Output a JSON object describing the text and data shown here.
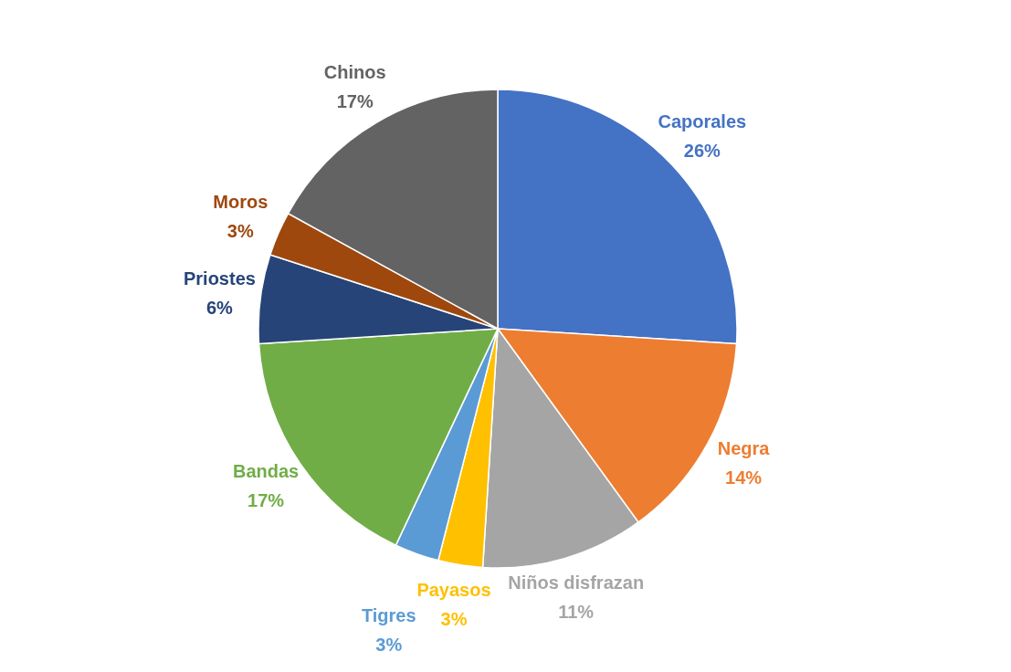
{
  "chart_data": {
    "type": "pie",
    "categories": [
      "Caporales",
      "Negra",
      "Niños disfrazan",
      "Payasos",
      "Tigres",
      "Bandas",
      "Priostes",
      "Moros",
      "Chinos"
    ],
    "values": [
      26,
      14,
      11,
      3,
      3,
      17,
      6,
      3,
      17
    ],
    "value_labels": [
      "26%",
      "14%",
      "11%",
      "3%",
      "3%",
      "17%",
      "6%",
      "3%",
      "17%"
    ],
    "colors": [
      "#4472c4",
      "#ed7d31",
      "#a5a5a5",
      "#ffc000",
      "#5b9bd5",
      "#70ad47",
      "#264478",
      "#9e480e",
      "#636363"
    ]
  }
}
